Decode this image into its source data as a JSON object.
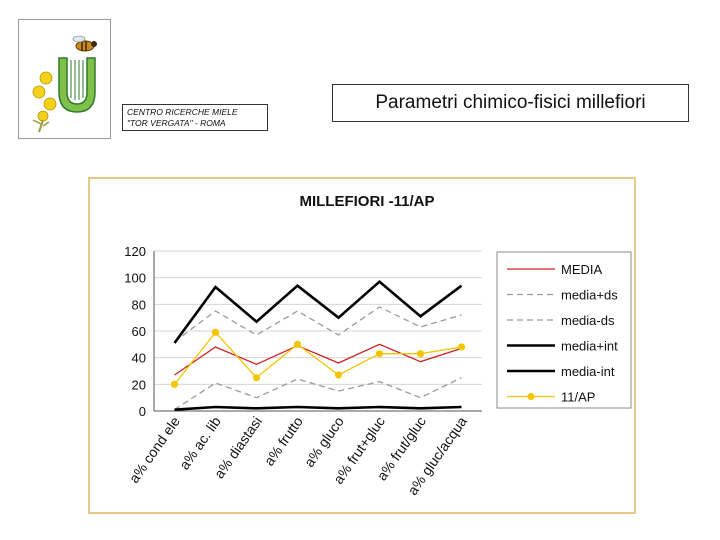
{
  "header": {
    "center_line1": "CENTRO RICERCHE MIELE",
    "center_line2": "\"TOR VERGATA\" - ROMA",
    "slide_title": "Parametri chimico-fisici millefiori"
  },
  "chart_data": {
    "type": "line",
    "title": "MILLEFIORI -11/AP",
    "xlabel": "",
    "ylabel": "",
    "ylim": [
      0,
      120
    ],
    "yticks": [
      0,
      20,
      40,
      60,
      80,
      100,
      120
    ],
    "grid": true,
    "legend_position": "right",
    "categories": [
      "a% cond ele",
      "a% ac. lib",
      "a% diastasi",
      "a% frutto",
      "a% gluco",
      "a% frut+gluc",
      "a% frut/gluc",
      "a% gluc/acqua"
    ],
    "series": [
      {
        "name": "MEDIA",
        "color": "#cc2222",
        "style": "solid",
        "marker": false,
        "values": [
          27,
          48,
          35,
          49,
          36,
          50,
          37,
          47
        ]
      },
      {
        "name": "media+ds",
        "color": "#9a9a9a",
        "style": "dashed",
        "marker": false,
        "values": [
          52,
          75,
          57,
          75,
          57,
          78,
          63,
          72
        ]
      },
      {
        "name": "media-ds",
        "color": "#9a9a9a",
        "style": "dashed",
        "marker": false,
        "values": [
          1,
          21,
          10,
          24,
          15,
          22,
          10,
          25
        ]
      },
      {
        "name": "media+int",
        "color": "#000000",
        "style": "solid-bold",
        "marker": false,
        "values": [
          51,
          93,
          67,
          94,
          70,
          97,
          71,
          94
        ]
      },
      {
        "name": "media-int",
        "color": "#000000",
        "style": "solid-bold",
        "marker": false,
        "values": [
          1,
          3,
          2,
          3,
          2,
          3,
          2,
          3
        ]
      },
      {
        "name": "11/AP",
        "color": "#f5c400",
        "style": "solid",
        "marker": true,
        "values": [
          20,
          59,
          25,
          50,
          27,
          43,
          43,
          48
        ]
      }
    ]
  }
}
